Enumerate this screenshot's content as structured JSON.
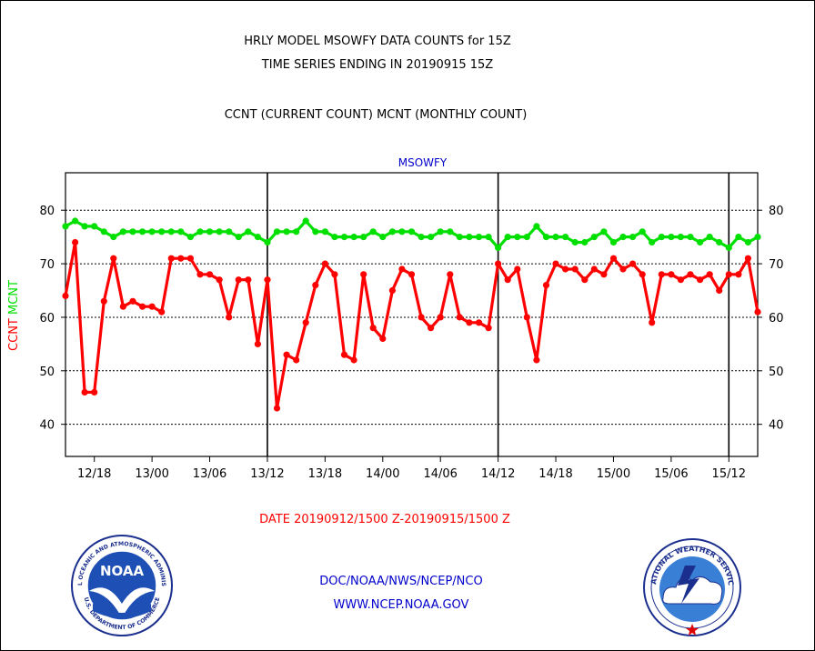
{
  "header": {
    "line1": "HRLY MODEL MSOWFY DATA COUNTS for 15Z",
    "line2": "TIME SERIES ENDING IN 20190915 15Z",
    "line3": "CCNT (CURRENT COUNT) MCNT (MONTHLY COUNT)"
  },
  "footer": {
    "date_range": "DATE 20190912/1500 Z-20190915/1500 Z",
    "org": "DOC/NOAA/NWS/NCEP/NCO",
    "url": "WWW.NCEP.NOAA.GOV"
  },
  "logos": {
    "noaa_text": "NOAA",
    "noaa_ring": "NATIONAL OCEANIC AND ATMOSPHERIC ADMINISTRATION",
    "noaa_ring_bottom": "U.S. DEPARTMENT OF COMMERCE",
    "nws_ring": "NATIONAL WEATHER SERVICE"
  },
  "colors": {
    "ccnt": "#ff0000",
    "mcnt": "#00e000",
    "title": "#000000",
    "plot_title": "#0000cc",
    "footer_red": "#ff0000",
    "footer_blue": "#0000cc"
  },
  "chart_data": {
    "type": "line",
    "plot_title": "MSOWFY",
    "ylabel_ccnt": "CCNT",
    "ylabel_mcnt": "MCNT",
    "ylim": [
      34,
      87
    ],
    "yticks": [
      40,
      50,
      60,
      70,
      80
    ],
    "grid": true,
    "xlim": [
      15,
      87
    ],
    "xtick_labels": [
      "12/18",
      "13/00",
      "13/06",
      "13/12",
      "13/18",
      "14/00",
      "14/06",
      "14/12",
      "14/18",
      "15/00",
      "15/06",
      "15/12"
    ],
    "xtick_hours": [
      18,
      24,
      30,
      36,
      42,
      48,
      54,
      60,
      66,
      72,
      78,
      84
    ],
    "day_dividers": [
      36,
      60,
      84
    ],
    "x": [
      15,
      16,
      17,
      18,
      19,
      20,
      21,
      22,
      23,
      24,
      25,
      26,
      27,
      28,
      29,
      30,
      31,
      32,
      33,
      34,
      35,
      36,
      37,
      38,
      39,
      40,
      41,
      42,
      43,
      44,
      45,
      46,
      47,
      48,
      49,
      50,
      51,
      52,
      53,
      54,
      55,
      56,
      57,
      58,
      59,
      60,
      61,
      62,
      63,
      64,
      65,
      66,
      67,
      68,
      69,
      70,
      71,
      72,
      73,
      74,
      75,
      76,
      77,
      78,
      79,
      80,
      81,
      82,
      83,
      84,
      85,
      86,
      87
    ],
    "series": [
      {
        "name": "CCNT",
        "values": [
          64,
          74,
          46,
          46,
          63,
          71,
          62,
          63,
          62,
          62,
          61,
          71,
          71,
          71,
          68,
          68,
          67,
          60,
          67,
          67,
          55,
          67,
          43,
          53,
          52,
          59,
          66,
          70,
          68,
          53,
          52,
          68,
          58,
          56,
          65,
          69,
          68,
          60,
          58,
          60,
          68,
          60,
          59,
          59,
          58,
          70,
          67,
          69,
          60,
          52,
          66,
          70,
          69,
          69,
          67,
          69,
          68,
          71,
          69,
          70,
          68,
          59,
          68,
          68,
          67,
          68,
          67,
          68,
          65,
          68,
          68,
          71,
          61
        ]
      },
      {
        "name": "MCNT",
        "values": [
          77,
          78,
          77,
          77,
          76,
          75,
          76,
          76,
          76,
          76,
          76,
          76,
          76,
          75,
          76,
          76,
          76,
          76,
          75,
          76,
          75,
          74,
          76,
          76,
          76,
          78,
          76,
          76,
          75,
          75,
          75,
          75,
          76,
          75,
          76,
          76,
          76,
          75,
          75,
          76,
          76,
          75,
          75,
          75,
          75,
          73,
          75,
          75,
          75,
          77,
          75,
          75,
          75,
          74,
          74,
          75,
          76,
          74,
          75,
          75,
          76,
          74,
          75,
          75,
          75,
          75,
          74,
          75,
          74,
          73,
          75,
          74,
          75
        ]
      }
    ]
  }
}
